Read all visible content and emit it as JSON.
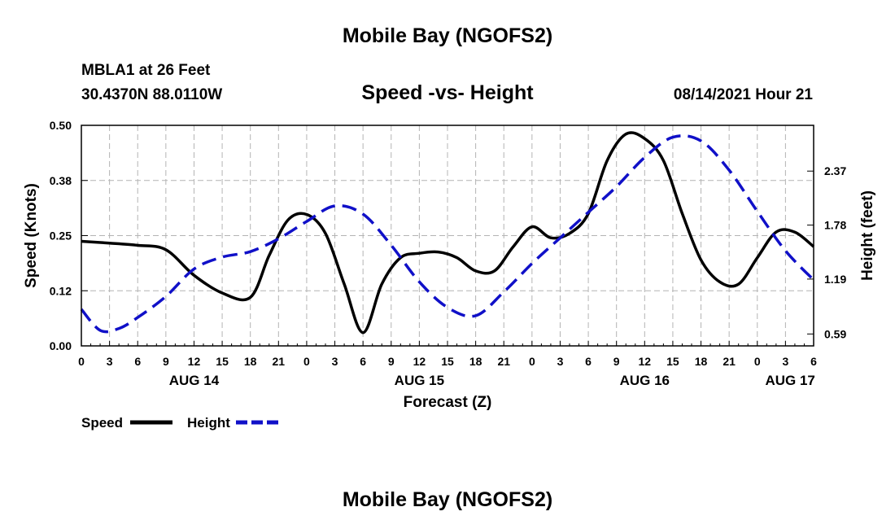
{
  "header": {
    "top_title": "Mobile Bay (NGOFS2)",
    "station_name": "MBLA1 at 26 Feet",
    "station_coords": "30.4370N  88.0110W",
    "chart_title": "Speed -vs- Height",
    "run_time": "08/14/2021 Hour 21",
    "bottom_title": "Mobile Bay (NGOFS2)"
  },
  "chart_data": {
    "type": "line",
    "title": "Speed -vs- Height",
    "xlabel": "Forecast (Z)",
    "ylabel_left": "Speed (Knots)",
    "ylabel_right": "Height (feet)",
    "x_range": [
      0,
      78
    ],
    "y_left_range": [
      0,
      0.5
    ],
    "y_right_range": [
      0.46,
      2.87
    ],
    "x_ticks": [
      {
        "x": 0,
        "label": "0"
      },
      {
        "x": 3,
        "label": "3"
      },
      {
        "x": 6,
        "label": "6"
      },
      {
        "x": 9,
        "label": "9"
      },
      {
        "x": 12,
        "label": "12"
      },
      {
        "x": 15,
        "label": "15"
      },
      {
        "x": 18,
        "label": "18"
      },
      {
        "x": 21,
        "label": "21"
      },
      {
        "x": 24,
        "label": "0"
      },
      {
        "x": 27,
        "label": "3"
      },
      {
        "x": 30,
        "label": "6"
      },
      {
        "x": 33,
        "label": "9"
      },
      {
        "x": 36,
        "label": "12"
      },
      {
        "x": 39,
        "label": "15"
      },
      {
        "x": 42,
        "label": "18"
      },
      {
        "x": 45,
        "label": "21"
      },
      {
        "x": 48,
        "label": "0"
      },
      {
        "x": 51,
        "label": "3"
      },
      {
        "x": 54,
        "label": "6"
      },
      {
        "x": 57,
        "label": "9"
      },
      {
        "x": 60,
        "label": "12"
      },
      {
        "x": 63,
        "label": "15"
      },
      {
        "x": 66,
        "label": "18"
      },
      {
        "x": 69,
        "label": "21"
      },
      {
        "x": 72,
        "label": "0"
      },
      {
        "x": 75,
        "label": "3"
      },
      {
        "x": 78,
        "label": "6"
      }
    ],
    "date_labels": [
      {
        "x": 12,
        "label": "AUG 14"
      },
      {
        "x": 36,
        "label": "AUG 15"
      },
      {
        "x": 60,
        "label": "AUG 16"
      },
      {
        "x": 75.5,
        "label": "AUG 17"
      }
    ],
    "y_left_ticks": [
      {
        "v": 0.0,
        "label": "0.00"
      },
      {
        "v": 0.125,
        "label": "0.12"
      },
      {
        "v": 0.25,
        "label": "0.25"
      },
      {
        "v": 0.375,
        "label": "0.38"
      },
      {
        "v": 0.5,
        "label": "0.50"
      }
    ],
    "y_right_ticks": [
      {
        "v": 0.59,
        "label": "0.59"
      },
      {
        "v": 1.19,
        "label": "1.19"
      },
      {
        "v": 1.78,
        "label": "1.78"
      },
      {
        "v": 2.37,
        "label": "2.37"
      }
    ],
    "grid": true,
    "legend_position": "bottom-left",
    "series": [
      {
        "name": "Speed",
        "axis": "left",
        "color": "#000000",
        "dash": "solid",
        "x": [
          0,
          3,
          6,
          9,
          12,
          15,
          18,
          20,
          22,
          24,
          26,
          28,
          30,
          32,
          34,
          36,
          38,
          40,
          42,
          44,
          46,
          48,
          50,
          52,
          54,
          56,
          58,
          60,
          62,
          64,
          66,
          68,
          70,
          72,
          74,
          76,
          78
        ],
        "y": [
          0.237,
          0.233,
          0.228,
          0.218,
          0.16,
          0.12,
          0.11,
          0.205,
          0.285,
          0.298,
          0.255,
          0.14,
          0.03,
          0.14,
          0.2,
          0.21,
          0.213,
          0.2,
          0.17,
          0.17,
          0.225,
          0.27,
          0.245,
          0.255,
          0.3,
          0.42,
          0.48,
          0.47,
          0.42,
          0.3,
          0.195,
          0.145,
          0.14,
          0.2,
          0.258,
          0.258,
          0.225
        ]
      },
      {
        "name": "Height",
        "axis": "right",
        "color": "#1010c8",
        "dash": "dashed",
        "x": [
          0,
          2,
          4,
          6,
          9,
          12,
          15,
          18,
          21,
          24,
          27,
          30,
          33,
          36,
          39,
          42,
          45,
          48,
          51,
          54,
          57,
          60,
          63,
          66,
          69,
          72,
          75,
          78
        ],
        "y": [
          0.86,
          0.63,
          0.65,
          0.77,
          1.0,
          1.3,
          1.43,
          1.49,
          1.63,
          1.82,
          1.99,
          1.9,
          1.56,
          1.16,
          0.88,
          0.79,
          1.05,
          1.36,
          1.64,
          1.92,
          2.2,
          2.52,
          2.74,
          2.7,
          2.38,
          1.93,
          1.5,
          1.18
        ]
      }
    ]
  }
}
